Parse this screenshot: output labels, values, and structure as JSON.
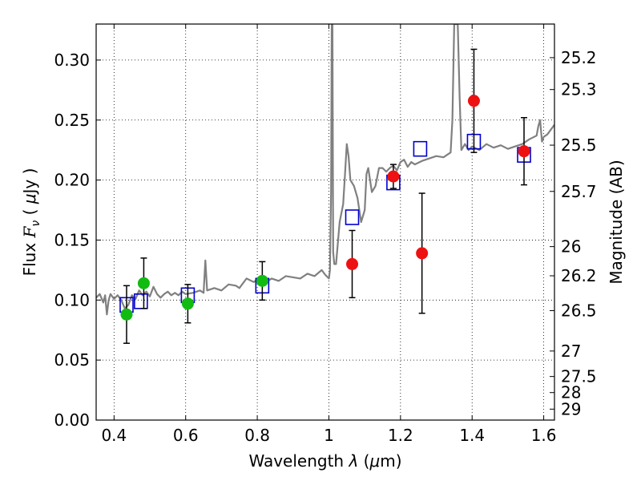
{
  "chart_data": {
    "type": "scatter",
    "xlabel_parts": {
      "text": "Wavelength  ",
      "symbol": "λ",
      "unit_open": " (",
      "mu": "μ",
      "unit_rest": "m)"
    },
    "ylabel_parts": {
      "text": "Flux  ",
      "symbol": "F",
      "sub": "ν",
      "unit_open": "  ( ",
      "mu": "μ",
      "unit_rest": "Jy )"
    },
    "y2label": "Magnitude (AB)",
    "xlim": [
      0.35,
      1.63
    ],
    "ylim": [
      0.0,
      0.33
    ],
    "x_ticks": [
      0.4,
      0.6,
      0.8,
      1.0,
      1.2,
      1.4,
      1.6
    ],
    "x_tick_labels": [
      "0.4",
      "0.6",
      "0.8",
      "1",
      "1.2",
      "1.4",
      "1.6"
    ],
    "y_ticks": [
      0.0,
      0.05,
      0.1,
      0.15,
      0.2,
      0.25,
      0.3
    ],
    "y_tick_labels": [
      "0.00",
      "0.05",
      "0.10",
      "0.15",
      "0.20",
      "0.25",
      "0.30"
    ],
    "mag_ticks": [
      25.2,
      25.3,
      25.5,
      25.7,
      26,
      26.2,
      26.5,
      27,
      27.5,
      28,
      29
    ],
    "mag_tick_labels": [
      "25.2",
      "25.3",
      "25.5",
      "25.7",
      "26",
      "26.2",
      "26.5",
      "27",
      "27.5",
      "28",
      "29"
    ],
    "grid": true,
    "colors": {
      "template": "#808080",
      "green": "#11bb11",
      "red": "#ee1111",
      "model": "#0000cc",
      "error": "#000000"
    },
    "series": [
      {
        "name": "model-photometry",
        "marker": "open-square",
        "points": [
          {
            "x": 0.435,
            "y": 0.096
          },
          {
            "x": 0.475,
            "y": 0.099
          },
          {
            "x": 0.606,
            "y": 0.104
          },
          {
            "x": 0.814,
            "y": 0.112
          },
          {
            "x": 1.065,
            "y": 0.169
          },
          {
            "x": 1.18,
            "y": 0.198
          },
          {
            "x": 1.255,
            "y": 0.226
          },
          {
            "x": 1.405,
            "y": 0.232
          },
          {
            "x": 1.545,
            "y": 0.221
          }
        ]
      },
      {
        "name": "optical-observed",
        "marker": "green-circle",
        "points": [
          {
            "x": 0.435,
            "y": 0.088,
            "err": 0.024
          },
          {
            "x": 0.483,
            "y": 0.114,
            "err": 0.021
          },
          {
            "x": 0.606,
            "y": 0.097,
            "err": 0.016
          },
          {
            "x": 0.814,
            "y": 0.116,
            "err": 0.016
          }
        ]
      },
      {
        "name": "nir-observed",
        "marker": "red-circle",
        "points": [
          {
            "x": 1.065,
            "y": 0.13,
            "err": 0.028
          },
          {
            "x": 1.18,
            "y": 0.203,
            "err": 0.01
          },
          {
            "x": 1.26,
            "y": 0.139,
            "err": 0.05
          },
          {
            "x": 1.405,
            "y": 0.266,
            "err": 0.043
          },
          {
            "x": 1.545,
            "y": 0.224,
            "err": 0.028
          }
        ]
      }
    ],
    "template_spectrum": [
      [
        0.35,
        0.102
      ],
      [
        0.36,
        0.105
      ],
      [
        0.37,
        0.098
      ],
      [
        0.375,
        0.104
      ],
      [
        0.38,
        0.088
      ],
      [
        0.385,
        0.1
      ],
      [
        0.39,
        0.105
      ],
      [
        0.4,
        0.101
      ],
      [
        0.41,
        0.104
      ],
      [
        0.42,
        0.1
      ],
      [
        0.43,
        0.093
      ],
      [
        0.44,
        0.096
      ],
      [
        0.45,
        0.104
      ],
      [
        0.46,
        0.101
      ],
      [
        0.47,
        0.108
      ],
      [
        0.48,
        0.104
      ],
      [
        0.49,
        0.107
      ],
      [
        0.5,
        0.103
      ],
      [
        0.51,
        0.111
      ],
      [
        0.52,
        0.105
      ],
      [
        0.53,
        0.102
      ],
      [
        0.54,
        0.105
      ],
      [
        0.55,
        0.107
      ],
      [
        0.56,
        0.104
      ],
      [
        0.57,
        0.106
      ],
      [
        0.58,
        0.104
      ],
      [
        0.59,
        0.107
      ],
      [
        0.6,
        0.105
      ],
      [
        0.62,
        0.106
      ],
      [
        0.64,
        0.108
      ],
      [
        0.65,
        0.106
      ],
      [
        0.655,
        0.133
      ],
      [
        0.66,
        0.108
      ],
      [
        0.68,
        0.11
      ],
      [
        0.7,
        0.108
      ],
      [
        0.72,
        0.113
      ],
      [
        0.74,
        0.112
      ],
      [
        0.75,
        0.11
      ],
      [
        0.77,
        0.118
      ],
      [
        0.79,
        0.115
      ],
      [
        0.8,
        0.117
      ],
      [
        0.82,
        0.114
      ],
      [
        0.84,
        0.118
      ],
      [
        0.86,
        0.116
      ],
      [
        0.88,
        0.12
      ],
      [
        0.9,
        0.119
      ],
      [
        0.92,
        0.118
      ],
      [
        0.94,
        0.122
      ],
      [
        0.96,
        0.12
      ],
      [
        0.98,
        0.125
      ],
      [
        0.99,
        0.121
      ],
      [
        1.0,
        0.118
      ],
      [
        1.003,
        0.125
      ],
      [
        1.006,
        0.19
      ],
      [
        1.008,
        0.33
      ],
      [
        1.01,
        0.33
      ],
      [
        1.012,
        0.14
      ],
      [
        1.015,
        0.13
      ],
      [
        1.02,
        0.13
      ],
      [
        1.03,
        0.165
      ],
      [
        1.04,
        0.18
      ],
      [
        1.045,
        0.205
      ],
      [
        1.05,
        0.23
      ],
      [
        1.055,
        0.22
      ],
      [
        1.06,
        0.2
      ],
      [
        1.07,
        0.195
      ],
      [
        1.08,
        0.185
      ],
      [
        1.09,
        0.165
      ],
      [
        1.1,
        0.175
      ],
      [
        1.105,
        0.205
      ],
      [
        1.11,
        0.21
      ],
      [
        1.12,
        0.19
      ],
      [
        1.13,
        0.195
      ],
      [
        1.14,
        0.21
      ],
      [
        1.15,
        0.21
      ],
      [
        1.16,
        0.207
      ],
      [
        1.17,
        0.21
      ],
      [
        1.18,
        0.212
      ],
      [
        1.19,
        0.208
      ],
      [
        1.2,
        0.215
      ],
      [
        1.21,
        0.217
      ],
      [
        1.22,
        0.211
      ],
      [
        1.23,
        0.215
      ],
      [
        1.24,
        0.213
      ],
      [
        1.26,
        0.216
      ],
      [
        1.28,
        0.218
      ],
      [
        1.3,
        0.22
      ],
      [
        1.32,
        0.219
      ],
      [
        1.34,
        0.223
      ],
      [
        1.345,
        0.25
      ],
      [
        1.35,
        0.33
      ],
      [
        1.36,
        0.33
      ],
      [
        1.365,
        0.27
      ],
      [
        1.37,
        0.225
      ],
      [
        1.38,
        0.23
      ],
      [
        1.39,
        0.225
      ],
      [
        1.4,
        0.228
      ],
      [
        1.42,
        0.225
      ],
      [
        1.44,
        0.23
      ],
      [
        1.46,
        0.227
      ],
      [
        1.48,
        0.229
      ],
      [
        1.5,
        0.226
      ],
      [
        1.52,
        0.228
      ],
      [
        1.54,
        0.23
      ],
      [
        1.56,
        0.234
      ],
      [
        1.58,
        0.237
      ],
      [
        1.585,
        0.245
      ],
      [
        1.59,
        0.25
      ],
      [
        1.595,
        0.232
      ],
      [
        1.6,
        0.236
      ],
      [
        1.61,
        0.238
      ],
      [
        1.62,
        0.242
      ],
      [
        1.63,
        0.246
      ]
    ]
  }
}
